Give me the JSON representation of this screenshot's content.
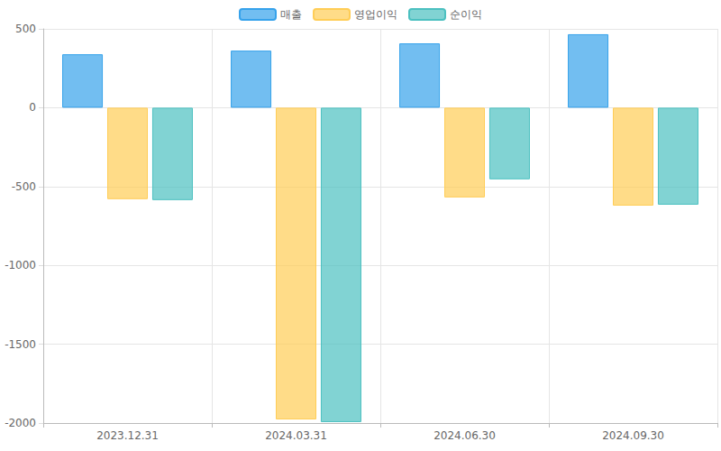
{
  "chart_data": {
    "type": "bar",
    "categories": [
      "2023.12.31",
      "2024.03.31",
      "2024.06.30",
      "2024.09.30"
    ],
    "series": [
      {
        "name": "매출",
        "color": "#36a2eb",
        "values": [
          339,
          362,
          408,
          466
        ]
      },
      {
        "name": "영업이익",
        "color": "#ffcd56",
        "values": [
          -580,
          -1977,
          -569,
          -621
        ]
      },
      {
        "name": "순이익",
        "color": "#4bc0c0",
        "values": [
          -586,
          -1994,
          -454,
          -615
        ]
      }
    ],
    "ylim": [
      -2000,
      500
    ],
    "yticks": [
      -2000,
      -1500,
      -1000,
      -500,
      0,
      500
    ],
    "grid": true,
    "legend": "top"
  }
}
